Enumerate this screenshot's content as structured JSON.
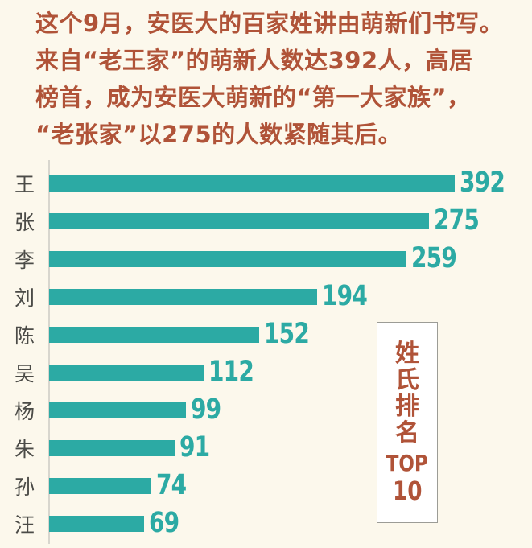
{
  "colors": {
    "background": "#fcf8ec",
    "accent_rust": "#b05338",
    "bar_teal": "#2caaa4",
    "category_label": "#4b4b47",
    "axis_line": "#d8d6ce",
    "box_border": "#9c9c96",
    "box_background": "#ffffff"
  },
  "intro": {
    "lines": [
      "这个9月，安医大的百家姓讲由萌新们书写。",
      "来自“老王家”的萌新人数达392人，高居",
      "榜首，成为安医大萌新的“第一大家族”，",
      "“老张家”以275的人数紧随其后。"
    ]
  },
  "chart_data": {
    "type": "bar",
    "orientation": "horizontal",
    "title": "姓氏排名 TOP 10",
    "categories": [
      "王",
      "张",
      "李",
      "刘",
      "陈",
      "吴",
      "杨",
      "朱",
      "孙",
      "汪"
    ],
    "values": [
      392,
      275,
      259,
      194,
      152,
      112,
      99,
      91,
      74,
      69
    ],
    "value_labels_shown": true,
    "legend": "none",
    "grid": "off",
    "note": "first bar (392) is visually truncated to fit the canvas width"
  },
  "side_label": {
    "chars": [
      "姓",
      "氏",
      "排",
      "名"
    ],
    "top_text": "TOP",
    "number": "10"
  }
}
